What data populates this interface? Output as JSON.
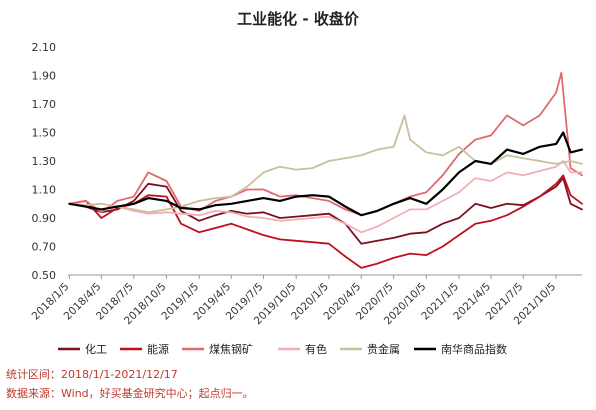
{
  "chart_data": {
    "type": "line",
    "title": "工业能化 - 收盘价",
    "ylim": [
      0.5,
      2.1
    ],
    "yticks": [
      0.5,
      0.7,
      0.9,
      1.1,
      1.3,
      1.5,
      1.7,
      1.9,
      2.1
    ],
    "ytick_labels": [
      "0.50",
      "0.70",
      "0.90",
      "1.10",
      "1.30",
      "1.50",
      "1.70",
      "1.90",
      "2.10"
    ],
    "x_start": "2018-01-01",
    "x_end": "2021-12-17",
    "xtick_dates": [
      "2018-01-05",
      "2018-04-05",
      "2018-07-05",
      "2018-10-05",
      "2019-01-05",
      "2019-04-05",
      "2019-07-05",
      "2019-10-05",
      "2020-01-05",
      "2020-04-05",
      "2020-07-05",
      "2020-10-05",
      "2021-01-05",
      "2021-04-05",
      "2021-07-05",
      "2021-10-05"
    ],
    "xtick_labels": [
      "2018/1/5",
      "2018/4/5",
      "2018/7/5",
      "2018/10/5",
      "2019/1/5",
      "2019/4/5",
      "2019/7/5",
      "2019/10/5",
      "2020/1/5",
      "2020/4/5",
      "2020/7/5",
      "2020/10/5",
      "2021/1/5",
      "2021/4/5",
      "2021/7/5",
      "2021/10/5"
    ],
    "grid": false,
    "legend_position": "bottom",
    "series": [
      {
        "name": "化工",
        "color": "#7b1020",
        "x": [
          "2018-01-05",
          "2018-02-20",
          "2018-04-05",
          "2018-05-20",
          "2018-07-05",
          "2018-08-15",
          "2018-10-05",
          "2018-11-15",
          "2019-01-05",
          "2019-02-20",
          "2019-04-05",
          "2019-05-20",
          "2019-07-05",
          "2019-08-20",
          "2019-10-05",
          "2019-11-20",
          "2020-01-05",
          "2020-02-20",
          "2020-04-05",
          "2020-05-20",
          "2020-07-05",
          "2020-08-20",
          "2020-10-05",
          "2020-11-20",
          "2021-01-05",
          "2021-02-20",
          "2021-04-05",
          "2021-05-20",
          "2021-07-05",
          "2021-08-20",
          "2021-10-05",
          "2021-10-25",
          "2021-11-15",
          "2021-12-17"
        ],
        "y": [
          1.0,
          0.98,
          0.94,
          0.96,
          1.02,
          1.14,
          1.12,
          0.95,
          0.88,
          0.92,
          0.95,
          0.93,
          0.94,
          0.9,
          0.91,
          0.92,
          0.93,
          0.86,
          0.72,
          0.74,
          0.76,
          0.79,
          0.8,
          0.86,
          0.9,
          1.0,
          0.97,
          1.0,
          0.99,
          1.05,
          1.12,
          1.18,
          1.0,
          0.96
        ]
      },
      {
        "name": "能源",
        "color": "#c0101e",
        "x": [
          "2018-01-05",
          "2018-02-20",
          "2018-04-05",
          "2018-05-20",
          "2018-07-05",
          "2018-08-15",
          "2018-10-05",
          "2018-11-15",
          "2019-01-05",
          "2019-02-20",
          "2019-04-05",
          "2019-05-20",
          "2019-07-05",
          "2019-08-20",
          "2019-10-05",
          "2019-11-20",
          "2020-01-05",
          "2020-02-20",
          "2020-04-05",
          "2020-05-20",
          "2020-07-05",
          "2020-08-20",
          "2020-10-05",
          "2020-11-20",
          "2021-01-05",
          "2021-02-20",
          "2021-04-05",
          "2021-05-20",
          "2021-07-05",
          "2021-08-20",
          "2021-10-05",
          "2021-10-25",
          "2021-11-15",
          "2021-12-17"
        ],
        "y": [
          1.0,
          1.02,
          0.9,
          0.97,
          1.0,
          1.06,
          1.05,
          0.86,
          0.8,
          0.83,
          0.86,
          0.82,
          0.78,
          0.75,
          0.74,
          0.73,
          0.72,
          0.63,
          0.55,
          0.58,
          0.62,
          0.65,
          0.64,
          0.7,
          0.78,
          0.86,
          0.88,
          0.92,
          0.98,
          1.05,
          1.14,
          1.2,
          1.06,
          1.0
        ]
      },
      {
        "name": "煤焦钢矿",
        "color": "#e06a6e",
        "x": [
          "2018-01-05",
          "2018-02-20",
          "2018-04-05",
          "2018-05-20",
          "2018-07-05",
          "2018-08-15",
          "2018-10-05",
          "2018-11-15",
          "2019-01-05",
          "2019-02-20",
          "2019-04-05",
          "2019-05-20",
          "2019-07-05",
          "2019-08-20",
          "2019-10-05",
          "2019-11-20",
          "2020-01-05",
          "2020-02-20",
          "2020-04-05",
          "2020-05-20",
          "2020-07-05",
          "2020-08-20",
          "2020-10-05",
          "2020-11-20",
          "2021-01-05",
          "2021-02-20",
          "2021-04-05",
          "2021-05-20",
          "2021-07-05",
          "2021-08-20",
          "2021-10-05",
          "2021-10-20",
          "2021-11-15",
          "2021-12-17"
        ],
        "y": [
          1.0,
          1.02,
          0.94,
          1.02,
          1.05,
          1.22,
          1.16,
          0.98,
          0.95,
          1.02,
          1.05,
          1.1,
          1.1,
          1.05,
          1.06,
          1.04,
          1.02,
          0.96,
          0.92,
          0.95,
          1.0,
          1.05,
          1.08,
          1.2,
          1.35,
          1.45,
          1.48,
          1.62,
          1.55,
          1.62,
          1.78,
          1.92,
          1.25,
          1.2
        ]
      },
      {
        "name": "有色",
        "color": "#f0b0b4",
        "x": [
          "2018-01-05",
          "2018-02-20",
          "2018-04-05",
          "2018-05-20",
          "2018-07-05",
          "2018-08-15",
          "2018-10-05",
          "2018-11-15",
          "2019-01-05",
          "2019-02-20",
          "2019-04-05",
          "2019-05-20",
          "2019-07-05",
          "2019-08-20",
          "2019-10-05",
          "2019-11-20",
          "2020-01-05",
          "2020-02-20",
          "2020-04-05",
          "2020-05-20",
          "2020-07-05",
          "2020-08-20",
          "2020-10-05",
          "2020-11-20",
          "2021-01-05",
          "2021-02-20",
          "2021-04-05",
          "2021-05-20",
          "2021-07-05",
          "2021-08-20",
          "2021-10-05",
          "2021-10-25",
          "2021-11-15",
          "2021-12-17"
        ],
        "y": [
          1.0,
          0.98,
          0.96,
          0.98,
          0.95,
          0.93,
          0.94,
          0.93,
          0.92,
          0.95,
          0.94,
          0.91,
          0.9,
          0.88,
          0.89,
          0.9,
          0.91,
          0.86,
          0.8,
          0.84,
          0.9,
          0.96,
          0.96,
          1.02,
          1.08,
          1.18,
          1.16,
          1.22,
          1.2,
          1.23,
          1.26,
          1.3,
          1.22,
          1.22
        ]
      },
      {
        "name": "贵金属",
        "color": "#c9bf9c",
        "x": [
          "2018-01-05",
          "2018-02-20",
          "2018-04-05",
          "2018-05-20",
          "2018-07-05",
          "2018-08-15",
          "2018-10-05",
          "2018-11-15",
          "2019-01-05",
          "2019-02-20",
          "2019-04-05",
          "2019-05-20",
          "2019-07-05",
          "2019-08-20",
          "2019-10-05",
          "2019-11-20",
          "2020-01-05",
          "2020-02-20",
          "2020-04-05",
          "2020-05-20",
          "2020-07-05",
          "2020-08-05",
          "2020-08-20",
          "2020-10-05",
          "2020-11-20",
          "2021-01-05",
          "2021-02-20",
          "2021-04-05",
          "2021-05-20",
          "2021-07-05",
          "2021-08-20",
          "2021-10-05",
          "2021-11-15",
          "2021-12-17"
        ],
        "y": [
          1.0,
          0.99,
          1.0,
          0.98,
          0.96,
          0.94,
          0.96,
          0.98,
          1.02,
          1.04,
          1.05,
          1.12,
          1.22,
          1.26,
          1.24,
          1.25,
          1.3,
          1.32,
          1.34,
          1.38,
          1.4,
          1.62,
          1.45,
          1.36,
          1.34,
          1.4,
          1.3,
          1.28,
          1.34,
          1.32,
          1.3,
          1.28,
          1.3,
          1.28
        ]
      },
      {
        "name": "南华商品指数",
        "color": "#000000",
        "x": [
          "2018-01-05",
          "2018-02-20",
          "2018-04-05",
          "2018-05-20",
          "2018-07-05",
          "2018-08-15",
          "2018-10-05",
          "2018-11-15",
          "2019-01-05",
          "2019-02-20",
          "2019-04-05",
          "2019-05-20",
          "2019-07-05",
          "2019-08-20",
          "2019-10-05",
          "2019-11-20",
          "2020-01-05",
          "2020-02-20",
          "2020-04-05",
          "2020-05-20",
          "2020-07-05",
          "2020-08-20",
          "2020-10-05",
          "2020-11-20",
          "2021-01-05",
          "2021-02-20",
          "2021-04-05",
          "2021-05-20",
          "2021-07-05",
          "2021-08-20",
          "2021-10-05",
          "2021-10-25",
          "2021-11-15",
          "2021-12-17"
        ],
        "y": [
          1.0,
          0.98,
          0.96,
          0.98,
          1.0,
          1.04,
          1.02,
          0.97,
          0.96,
          0.99,
          1.0,
          1.02,
          1.04,
          1.02,
          1.05,
          1.06,
          1.05,
          0.98,
          0.92,
          0.95,
          1.0,
          1.04,
          1.0,
          1.1,
          1.22,
          1.3,
          1.28,
          1.38,
          1.35,
          1.4,
          1.42,
          1.5,
          1.36,
          1.38
        ]
      }
    ]
  },
  "footnotes": {
    "period": "统计区间：2018/1/1-2021/12/17",
    "source": "数据来源：Wind，好买基金研究中心；起点归一。"
  }
}
